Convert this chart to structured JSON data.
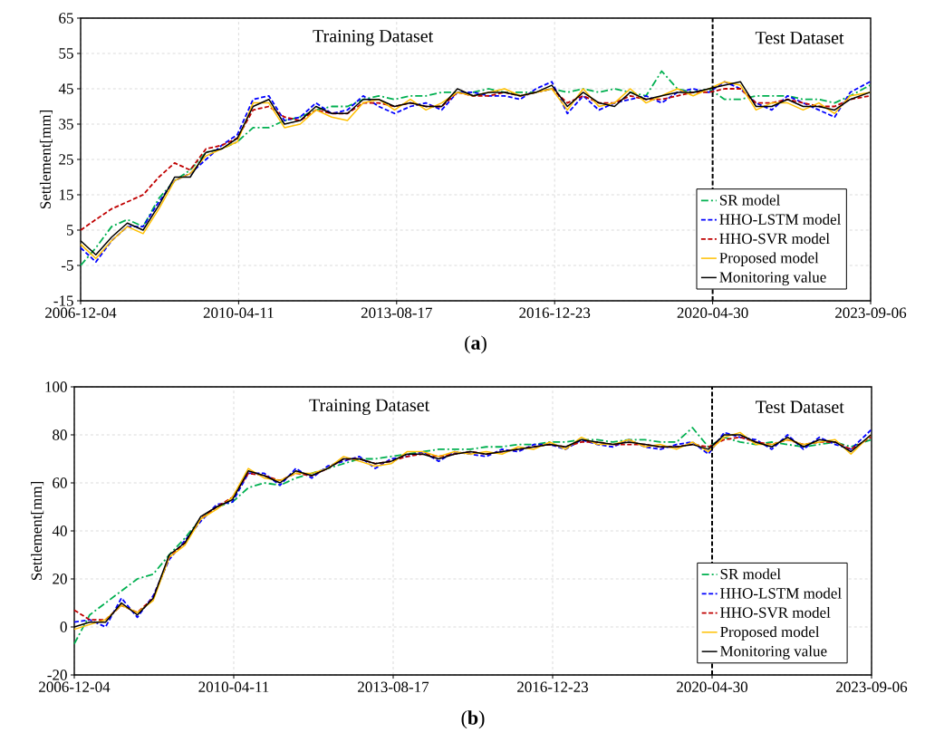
{
  "chart_data": [
    {
      "type": "line",
      "ylabel": "Settlement[mm]",
      "annotations": [
        "Training Dataset",
        "Test Dataset",
        "(**a**)"
      ],
      "x": [
        "2006-12-04",
        "2007-04",
        "2007-08",
        "2007-12",
        "2008-04",
        "2008-08",
        "2008-12",
        "2009-04",
        "2009-08",
        "2009-12",
        "2010-04",
        "2010-08",
        "2010-12",
        "2011-04",
        "2011-08",
        "2011-12",
        "2012-04",
        "2012-08",
        "2012-12",
        "2013-04",
        "2013-08",
        "2013-12",
        "2014-04",
        "2014-08",
        "2014-12",
        "2015-04",
        "2015-08",
        "2015-12",
        "2016-04",
        "2016-08",
        "2016-12",
        "2017-04",
        "2017-08",
        "2017-12",
        "2018-04",
        "2018-08",
        "2018-12",
        "2019-04",
        "2019-08",
        "2019-12",
        "2020-04",
        "2020-08",
        "2020-12",
        "2021-04",
        "2021-08",
        "2021-12",
        "2022-04",
        "2022-08",
        "2022-12",
        "2023-04",
        "2023-09"
      ],
      "series": [
        {
          "name": "SR model",
          "color": "#00b050",
          "line_style": "dashdot",
          "values": [
            -5,
            0,
            6,
            8,
            6,
            14,
            19,
            22,
            27,
            28,
            30,
            34,
            34,
            36,
            37,
            39,
            40,
            40,
            42,
            43,
            42,
            43,
            43,
            44,
            44,
            44,
            45,
            44,
            44,
            44,
            45,
            44,
            45,
            44,
            45,
            44,
            43,
            50,
            45,
            44,
            45,
            42,
            42,
            43,
            43,
            43,
            42,
            42,
            41,
            43,
            46
          ]
        },
        {
          "name": "HHO-LSTM model",
          "color": "#0000ff",
          "line_style": "dashed",
          "values": [
            0,
            -4,
            2,
            6,
            6,
            13,
            19,
            21,
            25,
            29,
            32,
            42,
            43,
            36,
            37,
            41,
            38,
            39,
            43,
            40,
            38,
            40,
            41,
            39,
            44,
            44,
            43,
            43,
            42,
            45,
            47,
            38,
            43,
            39,
            41,
            42,
            43,
            41,
            44,
            45,
            44,
            47,
            45,
            41,
            39,
            43,
            41,
            39,
            37,
            44,
            47
          ]
        },
        {
          "name": "HHO-SVR model",
          "color": "#c00000",
          "line_style": "dashed",
          "values": [
            5,
            8,
            11,
            13,
            15,
            20,
            24,
            22,
            28,
            29,
            31,
            39,
            40,
            37,
            36,
            39,
            38,
            38,
            41,
            41,
            40,
            41,
            40,
            40,
            44,
            43,
            43,
            44,
            43,
            44,
            45,
            41,
            43,
            41,
            41,
            43,
            42,
            42,
            43,
            44,
            44,
            45,
            45,
            41,
            41,
            42,
            41,
            40,
            40,
            42,
            43
          ]
        },
        {
          "name": "Proposed model",
          "color": "#ffc000",
          "line_style": "solid",
          "values": [
            1,
            -3,
            2,
            6,
            4,
            11,
            19,
            21,
            26,
            28,
            30,
            41,
            41,
            34,
            35,
            39,
            37,
            36,
            41,
            42,
            39,
            42,
            39,
            41,
            44,
            43,
            44,
            45,
            43,
            44,
            45,
            39,
            45,
            40,
            41,
            45,
            41,
            43,
            45,
            43,
            45,
            47,
            46,
            39,
            41,
            41,
            39,
            41,
            38,
            43,
            44
          ]
        },
        {
          "name": "Monitoring value",
          "color": "#000000",
          "line_style": "solid",
          "values": [
            2,
            -2,
            3,
            7,
            5,
            12,
            20,
            20,
            27,
            28,
            31,
            40,
            42,
            35,
            36,
            40,
            38,
            38,
            42,
            42,
            40,
            41,
            40,
            40,
            45,
            43,
            44,
            44,
            43,
            44,
            46,
            40,
            44,
            41,
            40,
            44,
            42,
            43,
            44,
            44,
            45,
            46,
            47,
            40,
            40,
            42,
            40,
            40,
            39,
            42,
            44
          ]
        }
      ],
      "xlim": [
        "2006-12-04",
        "2023-09-06"
      ],
      "xticks": [
        "2006-12-04",
        "2010-04-11",
        "2013-08-17",
        "2016-12-23",
        "2020-04-30",
        "2023-09-06"
      ],
      "ylim": [
        -15,
        65
      ],
      "yticks": [
        -15,
        -5,
        5,
        15,
        25,
        35,
        45,
        55,
        65
      ],
      "ref_lines": [
        {
          "axis": "x",
          "value": "2020-04-30",
          "color": "#000000",
          "line_style": "dashed"
        }
      ],
      "grid": true,
      "legend": "bottom right"
    },
    {
      "type": "line",
      "ylabel": "Settlement[mm]",
      "annotations": [
        "Training Dataset",
        "Test Dataset",
        "(**b**)"
      ],
      "x": [
        "2006-12-04",
        "2007-04",
        "2007-08",
        "2007-12",
        "2008-04",
        "2008-08",
        "2008-12",
        "2009-04",
        "2009-08",
        "2009-12",
        "2010-04",
        "2010-08",
        "2010-12",
        "2011-04",
        "2011-08",
        "2011-12",
        "2012-04",
        "2012-08",
        "2012-12",
        "2013-04",
        "2013-08",
        "2013-12",
        "2014-04",
        "2014-08",
        "2014-12",
        "2015-04",
        "2015-08",
        "2015-12",
        "2016-04",
        "2016-08",
        "2016-12",
        "2017-04",
        "2017-08",
        "2017-12",
        "2018-04",
        "2018-08",
        "2018-12",
        "2019-04",
        "2019-08",
        "2019-12",
        "2020-04",
        "2020-08",
        "2020-12",
        "2021-04",
        "2021-08",
        "2021-12",
        "2022-04",
        "2022-08",
        "2022-12",
        "2023-04",
        "2023-09"
      ],
      "series": [
        {
          "name": "SR model",
          "color": "#00b050",
          "line_style": "dashdot",
          "values": [
            -7,
            5,
            10,
            15,
            20,
            22,
            30,
            37,
            45,
            50,
            52,
            58,
            60,
            59,
            62,
            64,
            66,
            68,
            70,
            70,
            71,
            72,
            73,
            74,
            74,
            74,
            75,
            75,
            76,
            76,
            77,
            77,
            78,
            78,
            77,
            78,
            78,
            77,
            77,
            83,
            75,
            79,
            77,
            76,
            77,
            76,
            75,
            76,
            77,
            75,
            78
          ]
        },
        {
          "name": "HHO-LSTM model",
          "color": "#0000ff",
          "line_style": "dashed",
          "values": [
            2,
            3,
            0,
            12,
            4,
            13,
            28,
            36,
            44,
            51,
            52,
            64,
            64,
            59,
            66,
            62,
            67,
            69,
            71,
            66,
            70,
            71,
            73,
            69,
            73,
            72,
            71,
            74,
            73,
            76,
            76,
            74,
            78,
            76,
            75,
            78,
            75,
            74,
            76,
            77,
            72,
            81,
            79,
            78,
            74,
            80,
            74,
            79,
            76,
            74,
            82
          ]
        },
        {
          "name": "HHO-SVR model",
          "color": "#c00000",
          "line_style": "dashed",
          "values": [
            7,
            3,
            3,
            9,
            6,
            12,
            29,
            35,
            45,
            50,
            54,
            64,
            63,
            61,
            64,
            63,
            66,
            70,
            70,
            68,
            69,
            71,
            72,
            71,
            72,
            73,
            72,
            73,
            74,
            75,
            76,
            75,
            77,
            77,
            76,
            76,
            76,
            75,
            75,
            76,
            75,
            78,
            79,
            77,
            76,
            78,
            76,
            77,
            77,
            74,
            79
          ]
        },
        {
          "name": "Proposed model",
          "color": "#ffc000",
          "line_style": "solid",
          "values": [
            -1,
            1,
            3,
            9,
            6,
            11,
            29,
            34,
            45,
            49,
            54,
            66,
            62,
            61,
            64,
            64,
            66,
            71,
            69,
            67,
            68,
            73,
            73,
            71,
            73,
            72,
            73,
            72,
            75,
            74,
            77,
            74,
            79,
            76,
            76,
            78,
            75,
            76,
            74,
            77,
            73,
            79,
            81,
            76,
            76,
            78,
            76,
            77,
            78,
            72,
            80
          ]
        },
        {
          "name": "Monitoring value",
          "color": "#000000",
          "line_style": "solid",
          "values": [
            0,
            2,
            2,
            10,
            5,
            12,
            30,
            35,
            46,
            50,
            53,
            65,
            63,
            60,
            65,
            63,
            66,
            70,
            70,
            68,
            69,
            72,
            72,
            70,
            72,
            73,
            72,
            73,
            74,
            75,
            76,
            75,
            78,
            77,
            76,
            77,
            76,
            75,
            75,
            76,
            74,
            80,
            80,
            77,
            75,
            79,
            75,
            78,
            77,
            73,
            80
          ]
        }
      ],
      "xlim": [
        "2006-12-04",
        "2023-09-06"
      ],
      "xticks": [
        "2006-12-04",
        "2010-04-11",
        "2013-08-17",
        "2016-12-23",
        "2020-04-30",
        "2023-09-06"
      ],
      "ylim": [
        -20,
        100
      ],
      "yticks": [
        -20,
        0,
        20,
        40,
        60,
        80,
        100
      ],
      "ref_lines": [
        {
          "axis": "x",
          "value": "2020-04-30",
          "color": "#000000",
          "line_style": "dashed"
        }
      ],
      "grid": true,
      "legend": "bottom right"
    }
  ]
}
